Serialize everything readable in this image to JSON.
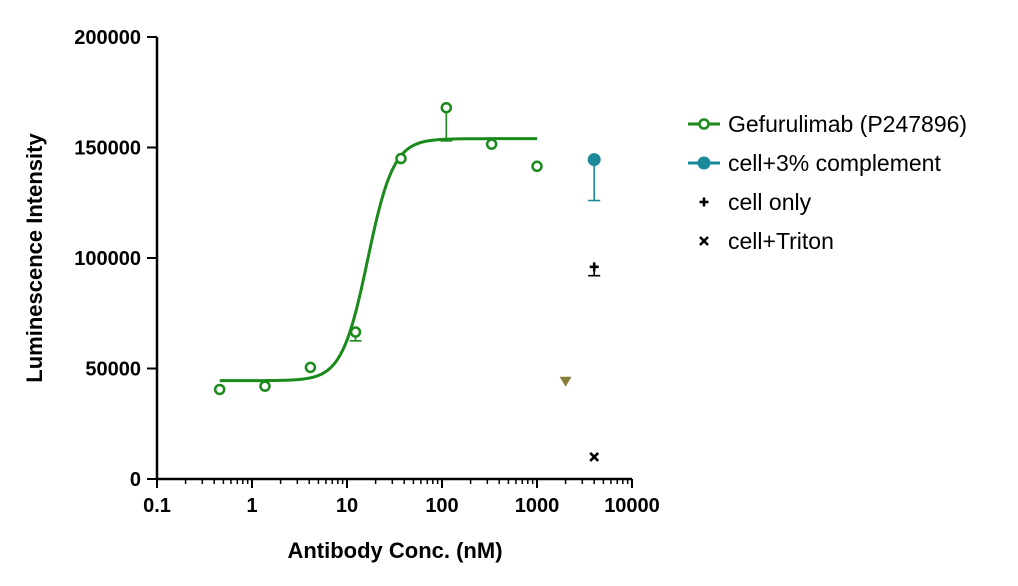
{
  "chart_data": {
    "type": "scatter",
    "title": "",
    "xlabel": "Antibody Conc. (nM)",
    "ylabel": "Luminescence Intensity",
    "x_scale": "log",
    "xlim": [
      0.1,
      10000
    ],
    "ylim": [
      0,
      200000
    ],
    "x_ticks": [
      0.1,
      1,
      10,
      100,
      1000,
      10000
    ],
    "x_tick_labels": [
      "0.1",
      "1",
      "10",
      "100",
      "1000",
      "10000"
    ],
    "y_ticks": [
      0,
      50000,
      100000,
      150000,
      200000
    ],
    "y_tick_labels": [
      "0",
      "50000",
      "100000",
      "150000",
      "200000"
    ],
    "grid": false,
    "legend_position": "right",
    "series": [
      {
        "name": "Gefurulimab (P247896)",
        "color": "#1a8a1a",
        "marker": "open-circle",
        "x": [
          0.457,
          1.37,
          4.12,
          12.3,
          37,
          111,
          333,
          1000
        ],
        "y": [
          40500,
          42000,
          50500,
          66500,
          145000,
          168000,
          151500,
          141500
        ],
        "error_plus": [
          0,
          0,
          0,
          0,
          0,
          0,
          0,
          0
        ],
        "error_minus": [
          0,
          0,
          0,
          4000,
          0,
          15000,
          0,
          0
        ],
        "fit_curve": {
          "bottom": 44500,
          "top": 154000,
          "ec50": 16.5,
          "hill_slope": 3.2,
          "x_range": [
            0.457,
            1000
          ]
        }
      },
      {
        "name": "cell+3% complement",
        "color": "#1a8a9a",
        "marker": "filled-circle",
        "x": [
          4000
        ],
        "y": [
          144500
        ],
        "error_plus": [
          0
        ],
        "error_minus": [
          18500
        ]
      },
      {
        "name": "cell only",
        "color": "#000000",
        "marker": "plus",
        "x": [
          4000
        ],
        "y": [
          96000
        ],
        "error_plus": [
          0
        ],
        "error_minus": [
          4000
        ]
      },
      {
        "name": "cell+Triton",
        "color": "#000000",
        "marker": "x",
        "x": [
          4000
        ],
        "y": [
          10000
        ],
        "error_plus": [
          0
        ],
        "error_minus": [
          0
        ]
      },
      {
        "color": "#8b7d3a",
        "marker": "triangle-down",
        "x": [
          2000
        ],
        "y": [
          44000
        ],
        "error_plus": [
          0
        ],
        "error_minus": [
          0
        ]
      }
    ]
  }
}
